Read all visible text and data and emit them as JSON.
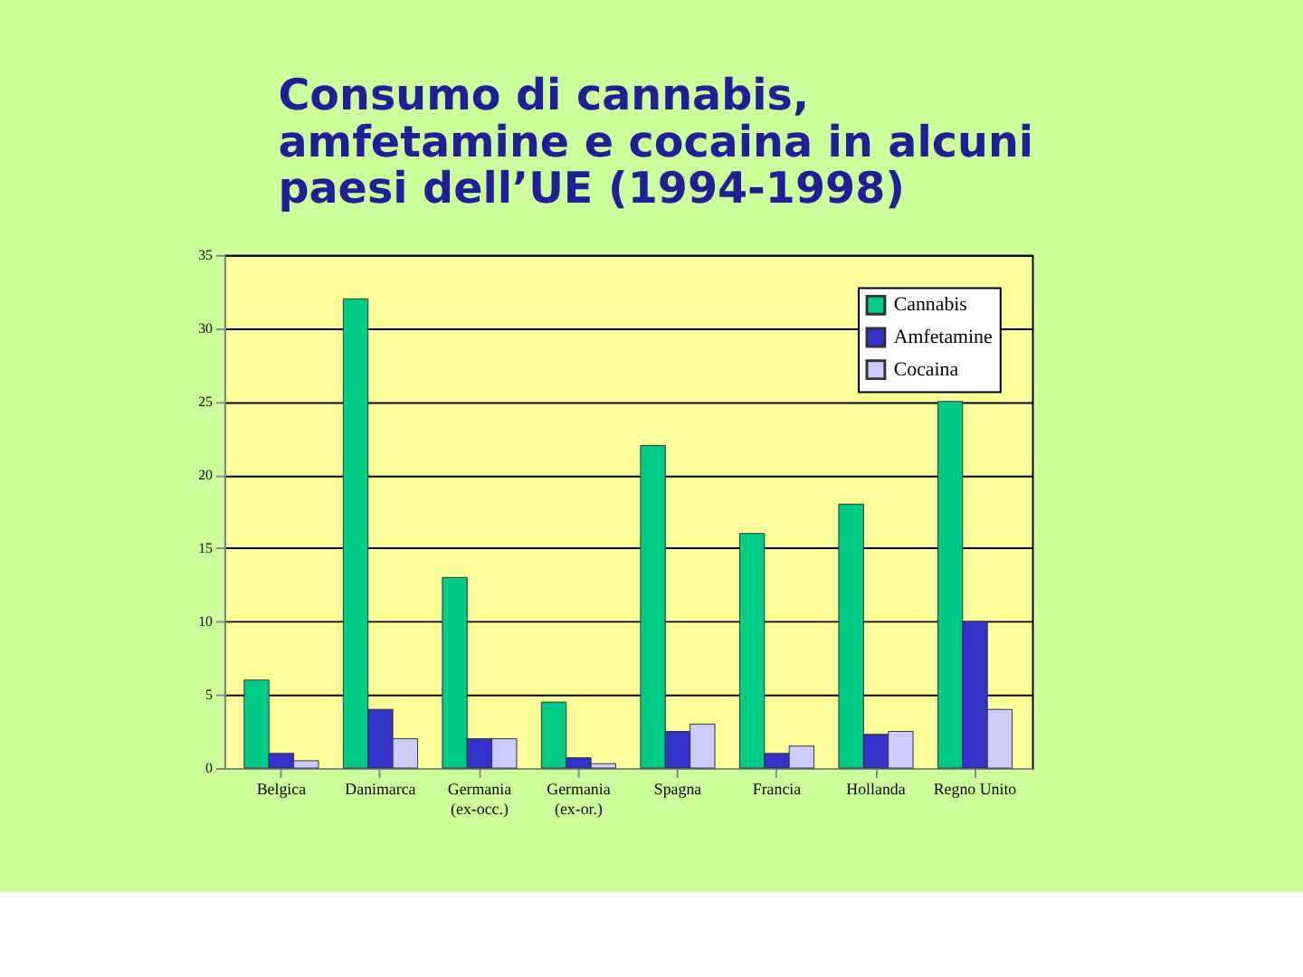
{
  "chart_data": {
    "type": "bar",
    "title": "Consumo di cannabis, amfetamine e cocaina in alcuni paesi dell’UE (1994-1998)",
    "categories": [
      "Belgica",
      "Danimarca",
      "Germania (ex-occ.)",
      "Germania (ex-or.)",
      "Spagna",
      "Francia",
      "Hollanda",
      "Regno Unito"
    ],
    "series": [
      {
        "name": "Cannabis",
        "color": "#00cc88",
        "values": [
          6,
          32,
          13,
          4.5,
          22,
          16,
          18,
          25
        ]
      },
      {
        "name": "Amfetamine",
        "color": "#3333cc",
        "values": [
          1,
          4,
          2,
          0.7,
          2.5,
          1,
          2.3,
          10
        ]
      },
      {
        "name": "Cocaina",
        "color": "#ccccff",
        "values": [
          0.5,
          2,
          2,
          0.3,
          3,
          1.5,
          2.5,
          4
        ]
      }
    ],
    "ylim": [
      0,
      35
    ],
    "yticks": [
      0,
      5,
      10,
      15,
      20,
      25,
      30,
      35
    ],
    "grid": "y",
    "legend": "top right"
  }
}
